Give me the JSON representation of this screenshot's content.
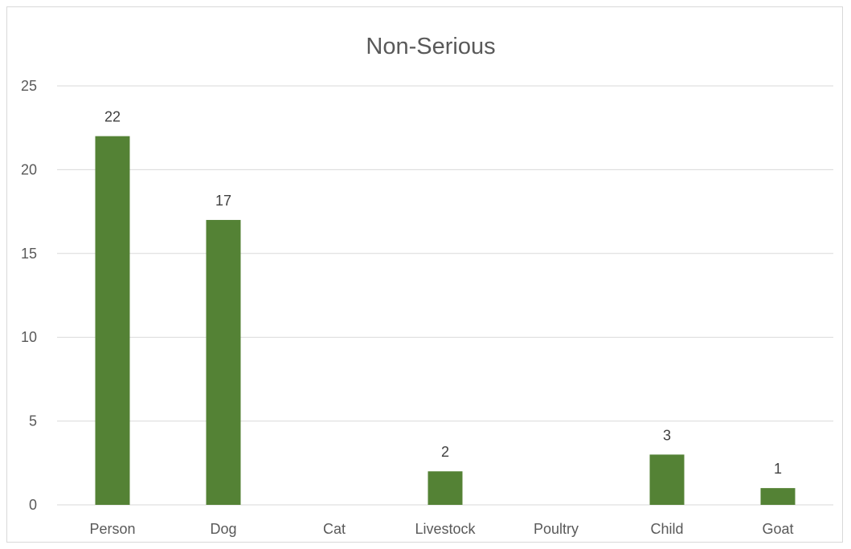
{
  "chart_data": {
    "type": "bar",
    "title": "Non-Serious",
    "xlabel": "",
    "ylabel": "",
    "categories": [
      "Person",
      "Dog",
      "Cat",
      "Livestock",
      "Poultry",
      "Child",
      "Goat"
    ],
    "values": [
      22,
      17,
      0,
      2,
      0,
      3,
      1
    ],
    "data_labels": [
      "22",
      "17",
      "",
      "2",
      "",
      "3",
      "1"
    ],
    "ylim": [
      0,
      25
    ],
    "yticks": [
      0,
      5,
      10,
      15,
      20,
      25
    ],
    "grid": true,
    "legend": "none",
    "bar_color": "#548235"
  }
}
